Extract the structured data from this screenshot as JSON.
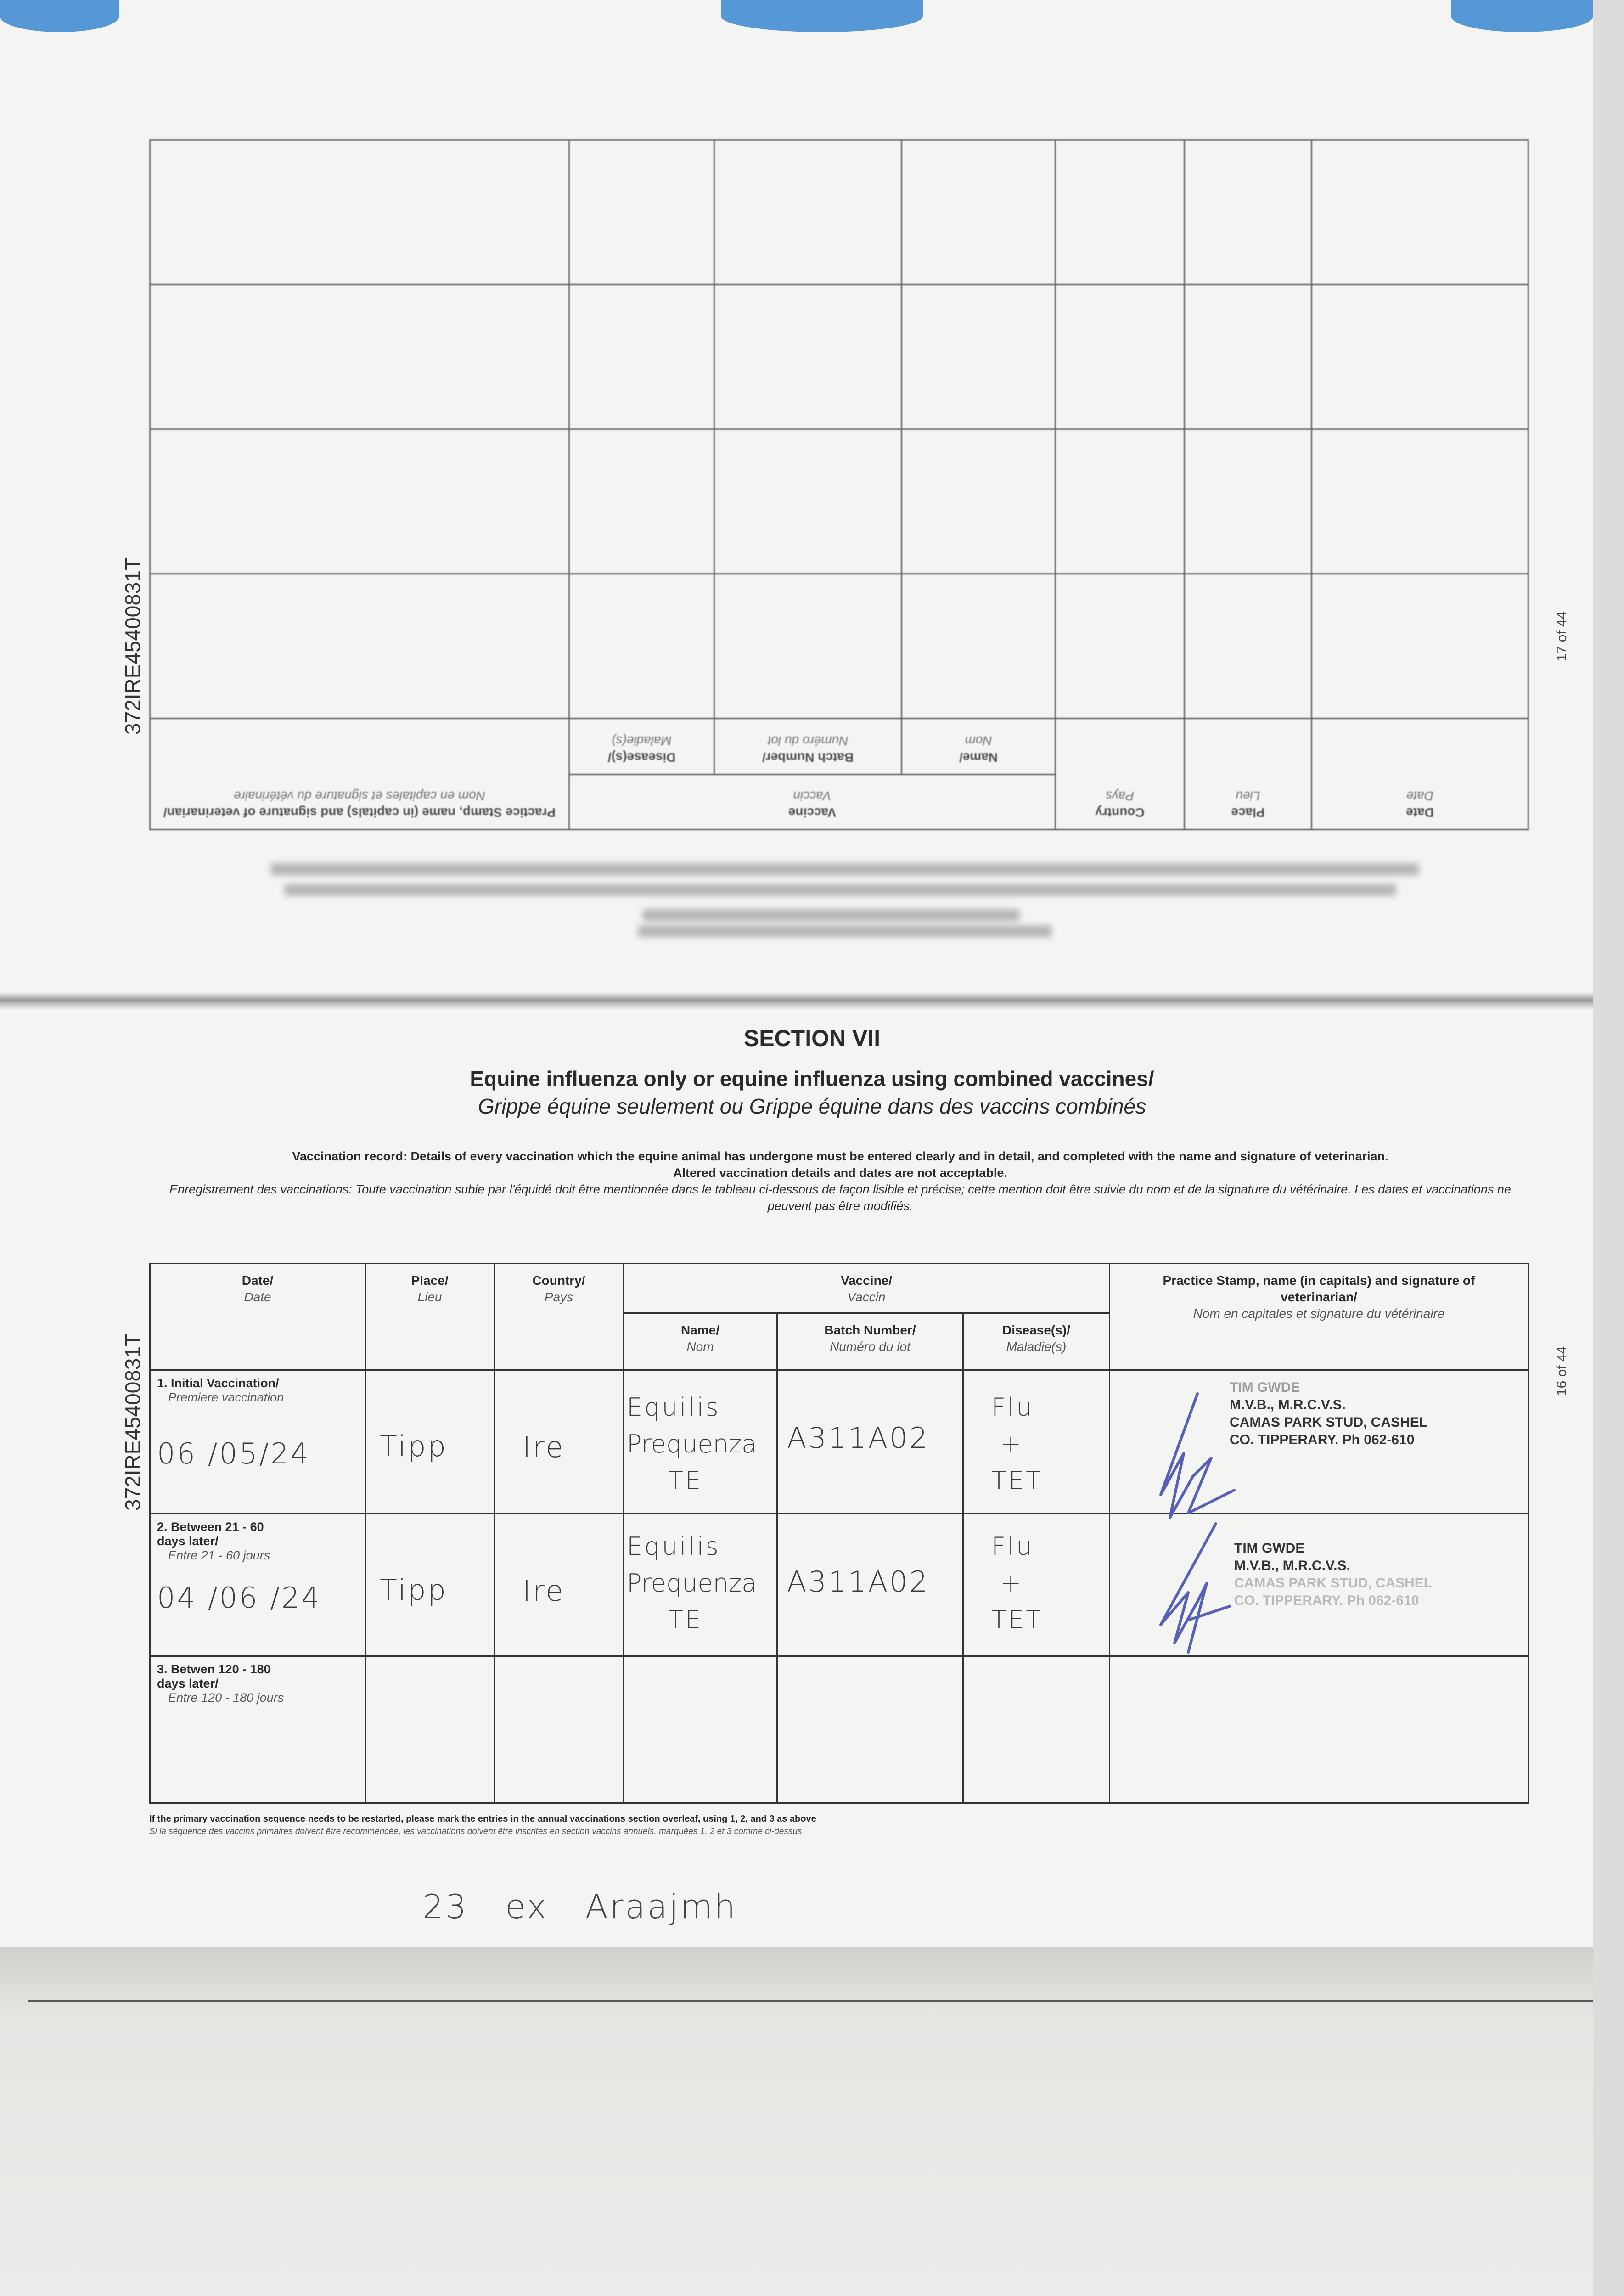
{
  "side_id": "372IRE45400831T",
  "upper_page": {
    "page_number": "17 of 44",
    "headers": {
      "date": "Date",
      "date_fr": "Date",
      "place": "Place",
      "place_fr": "Lieu",
      "country": "Country",
      "country_fr": "Pays",
      "vaccine": "Vaccine",
      "vaccine_fr": "Vaccin",
      "name": "Name/",
      "name_fr": "Nom",
      "batch": "Batch Number/",
      "batch_fr": "Numéro du lot",
      "disease": "Disease(s)/",
      "disease_fr": "Maladie(s)",
      "practice": "Practice Stamp, name (in capitals) and signature of veterinarian/",
      "practice_fr": "Nom en capitales et signature du vétérinaire"
    }
  },
  "section": {
    "label": "SECTION VII",
    "title": "Equine influenza only or equine influenza using combined vaccines/",
    "subtitle": "Grippe équine seulement ou Grippe équine dans des vaccins combinés",
    "instruction_en": "Vaccination record: Details of every vaccination which the equine animal has undergone must be entered clearly and in detail, and completed with the name and signature of veterinarian.",
    "instruction_en2": "Altered vaccination details and dates are not acceptable.",
    "instruction_fr": "Enregistrement des vaccinations: Toute vaccination subie par l'équidé doit être mentionnée dans le tableau ci-dessous de façon lisible et précise; cette mention doit être suivie du nom et de la signature du vétérinaire. Les dates et vaccinations ne peuvent pas être modifiés."
  },
  "table": {
    "headers": {
      "date": "Date/",
      "date_fr": "Date",
      "place": "Place/",
      "place_fr": "Lieu",
      "country": "Country/",
      "country_fr": "Pays",
      "vaccine": "Vaccine/",
      "vaccine_fr": "Vaccin",
      "name": "Name/",
      "name_fr": "Nom",
      "batch": "Batch Number/",
      "batch_fr": "Numéro du lot",
      "disease": "Disease(s)/",
      "disease_fr": "Maladie(s)",
      "practice": "Practice Stamp, name (in capitals) and signature of veterinarian/",
      "practice_fr": "Nom en capitales et signature du vétérinaire"
    },
    "rows": [
      {
        "label": "1. Initial Vaccination/",
        "label_fr": "Premiere vaccination",
        "date": "06 /05/24",
        "place": "Tipp",
        "country": "Ire",
        "name_l1": "Equilis",
        "name_l2": "Prequenza",
        "name_l3": "TE",
        "batch": "A311A02",
        "disease_l1": "Flu",
        "disease_l2": "+",
        "disease_l3": "TET",
        "stamp": [
          "TIM GWDE",
          "M.V.B., M.R.C.V.S.",
          "CAMAS PARK STUD, CASHEL",
          "CO. TIPPERARY. Ph 062-610"
        ]
      },
      {
        "label": "2. Between 21 - 60 days later/",
        "label_fr": "Entre 21 - 60 jours",
        "date": "04 /06 /24",
        "place": "Tipp",
        "country": "Ire",
        "name_l1": "Equilis",
        "name_l2": "Prequenza",
        "name_l3": "TE",
        "batch": "A311A02",
        "disease_l1": "Flu",
        "disease_l2": "+",
        "disease_l3": "TET",
        "stamp": [
          "TIM GWDE",
          "M.V.B., M.R.C.V.S.",
          "CAMAS PARK STUD, CASHEL",
          "CO. TIPPERARY. Ph 062-610"
        ]
      },
      {
        "label": "3. Betwen 120 - 180 days later/",
        "label_fr": "Entre 120 - 180 jours"
      }
    ]
  },
  "lower_page_number": "16 of 44",
  "footnote_en": "If the primary vaccination sequence needs to be restarted, please mark the entries in the annual vaccinations section overleaf, using 1, 2, and 3 as above",
  "footnote_fr": "Si la séquence des vaccins primaires doivent être recommencée, les vaccinations doivent être inscrites en section vaccins annuels, marquées 1, 2 et 3 comme ci-dessus",
  "handwritten_note": "23   ex   Araajmh",
  "colors": {
    "ink_blue": "#5660b8",
    "tape_blue": "#3a86d0",
    "paper": "#f4f4f2"
  }
}
